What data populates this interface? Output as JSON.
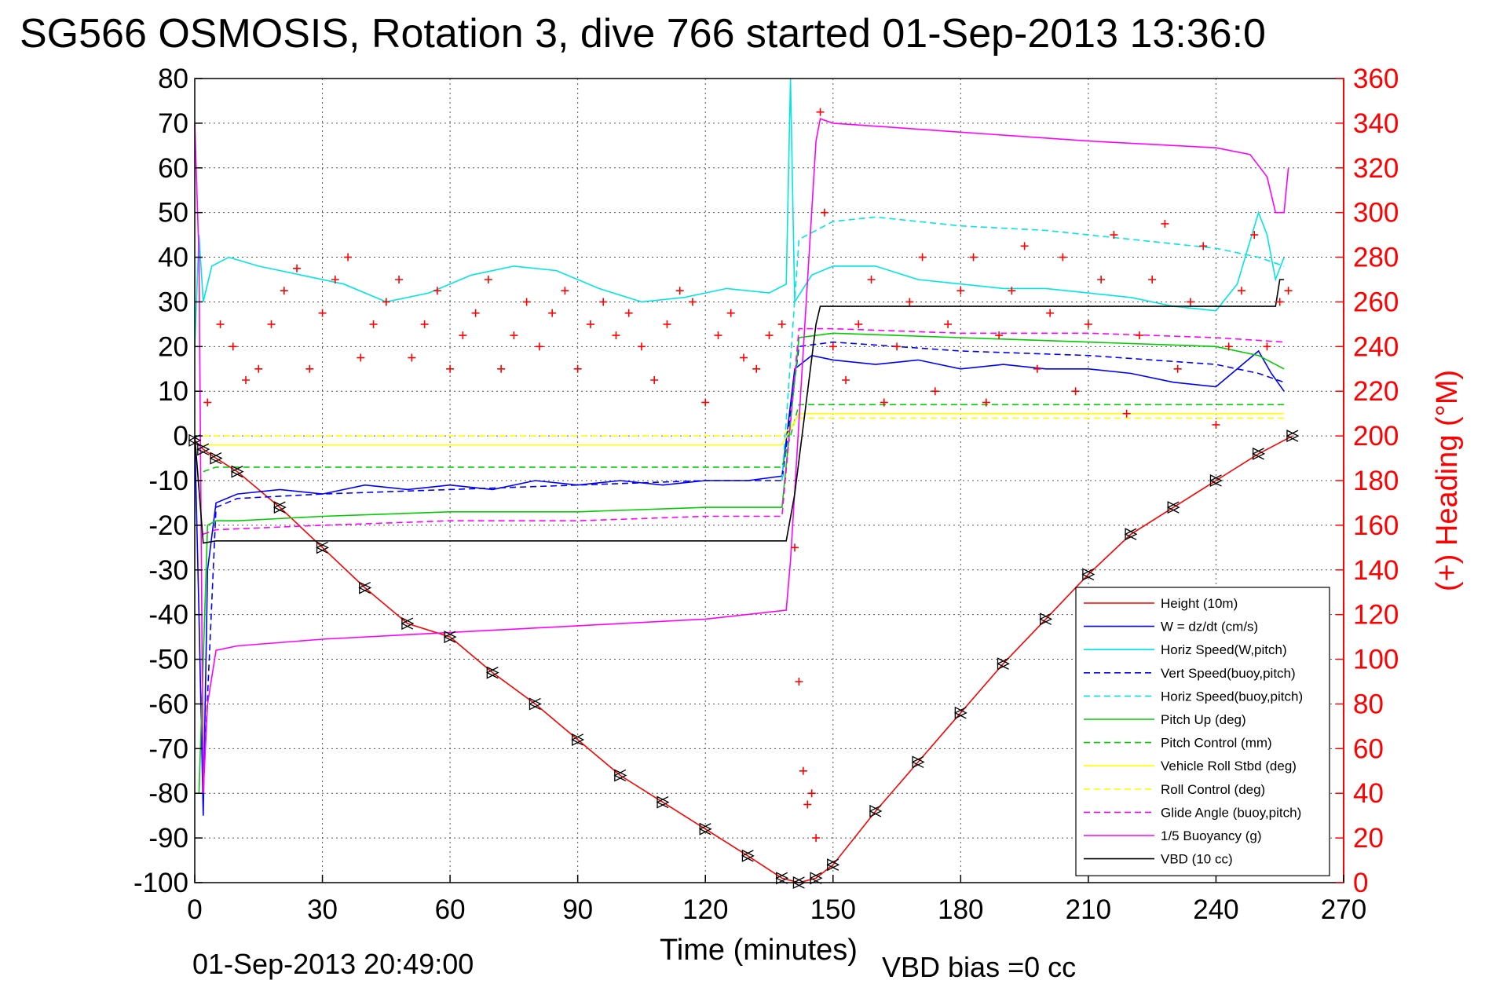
{
  "chart_data": {
    "type": "line",
    "title": "SG566 OSMOSIS, Rotation 3, dive 766 started 01-Sep-2013 13:36:0",
    "xlabel": "Time (minutes)",
    "ylabel_right": "(+) Heading (°M)",
    "xlim": [
      0,
      270
    ],
    "ylim": [
      -100,
      80
    ],
    "ylim_right": [
      0,
      360
    ],
    "x_ticks": [
      0,
      30,
      60,
      90,
      120,
      150,
      180,
      210,
      240,
      270
    ],
    "y_ticks": [
      80,
      70,
      60,
      50,
      40,
      30,
      20,
      10,
      0,
      -10,
      -20,
      -30,
      -40,
      -50,
      -60,
      -70,
      -80,
      -90,
      -100
    ],
    "y_ticks_right": [
      360,
      340,
      320,
      300,
      280,
      260,
      240,
      220,
      200,
      180,
      160,
      140,
      120,
      100,
      80,
      60,
      40,
      20,
      0
    ],
    "grid": true,
    "legend_position": "bottom-right",
    "footer_left": "01-Sep-2013 20:49:00",
    "footer_right": "VBD bias =0 cc",
    "series": [
      {
        "name": "Height (10m)",
        "color": "#ff0000",
        "dash": "solid",
        "x": [
          0,
          2,
          5,
          10,
          20,
          30,
          40,
          50,
          60,
          70,
          80,
          90,
          100,
          110,
          120,
          130,
          138,
          142,
          146,
          150,
          160,
          170,
          180,
          190,
          200,
          210,
          220,
          230,
          240,
          250,
          258
        ],
        "y": [
          -1,
          -3,
          -5,
          -8,
          -16,
          -25,
          -34,
          -42,
          -45,
          -53,
          -60,
          -68,
          -76,
          -82,
          -88,
          -94,
          -99,
          -100,
          -99,
          -96,
          -84,
          -73,
          -62,
          -51,
          -41,
          -31,
          -22,
          -16,
          -10,
          -4,
          0
        ]
      },
      {
        "name": "W = dz/dt (cm/s)",
        "color": "#0000ff",
        "dash": "solid",
        "x": [
          0,
          1,
          2,
          3,
          5,
          10,
          20,
          30,
          40,
          50,
          60,
          70,
          80,
          90,
          100,
          110,
          120,
          130,
          138,
          141,
          145,
          150,
          160,
          170,
          180,
          190,
          200,
          210,
          220,
          230,
          240,
          245,
          250,
          253,
          256
        ],
        "y": [
          0,
          -40,
          -85,
          -30,
          -15,
          -13,
          -12,
          -13,
          -11,
          -12,
          -11,
          -12,
          -10,
          -11,
          -10,
          -11,
          -10,
          -10,
          -9,
          15,
          18,
          17,
          16,
          17,
          15,
          16,
          15,
          15,
          14,
          12,
          11,
          15,
          19,
          14,
          10
        ]
      },
      {
        "name": "Horiz Speed(W,pitch)",
        "color": "#00e5e5",
        "dash": "solid",
        "x": [
          0,
          1,
          2,
          4,
          8,
          15,
          25,
          35,
          45,
          55,
          65,
          75,
          85,
          95,
          105,
          115,
          125,
          135,
          139,
          140,
          141,
          145,
          150,
          160,
          170,
          180,
          190,
          200,
          210,
          220,
          230,
          240,
          245,
          250,
          252,
          254,
          256
        ],
        "y": [
          20,
          45,
          30,
          38,
          40,
          38,
          36,
          34,
          30,
          32,
          36,
          38,
          37,
          33,
          30,
          31,
          33,
          32,
          34,
          80,
          30,
          36,
          38,
          38,
          35,
          34,
          33,
          33,
          32,
          31,
          29,
          28,
          34,
          50,
          45,
          35,
          40
        ]
      },
      {
        "name": "Vert Speed(buoy,pitch)",
        "color": "#0000ff",
        "dash": "dashed",
        "x": [
          2,
          5,
          10,
          30,
          60,
          90,
          120,
          138,
          142,
          150,
          180,
          210,
          240,
          250,
          256
        ],
        "y": [
          -80,
          -16,
          -14,
          -13,
          -12,
          -11,
          -10,
          -10,
          20,
          21,
          19,
          18,
          16,
          14,
          12
        ]
      },
      {
        "name": "Horiz Speed(buoy,pitch)",
        "color": "#00e5e5",
        "dash": "dashed",
        "x": [
          138,
          142,
          150,
          160,
          180,
          200,
          220,
          240,
          250,
          256
        ],
        "y": [
          -10,
          44,
          48,
          49,
          47,
          46,
          44,
          42,
          40,
          38
        ]
      },
      {
        "name": "Pitch Up (deg)",
        "color": "#00cc00",
        "dash": "solid",
        "x": [
          1,
          3,
          5,
          10,
          30,
          60,
          90,
          120,
          138,
          142,
          150,
          180,
          210,
          240,
          250,
          256
        ],
        "y": [
          -80,
          -20,
          -19,
          -19,
          -18,
          -17,
          -17,
          -16,
          -16,
          22,
          23,
          22,
          21,
          20,
          18,
          15
        ]
      },
      {
        "name": "Pitch Control (mm)",
        "color": "#00cc00",
        "dash": "dashed",
        "x": [
          2,
          5,
          30,
          60,
          90,
          120,
          138,
          142,
          150,
          180,
          210,
          240,
          256
        ],
        "y": [
          -8,
          -7,
          -7,
          -7,
          -7,
          -7,
          -7,
          7,
          7,
          7,
          7,
          7,
          7
        ]
      },
      {
        "name": "Vehicle Roll Stbd (deg)",
        "color": "#ffff00",
        "dash": "solid",
        "x": [
          2,
          10,
          40,
          70,
          100,
          130,
          138,
          142,
          150,
          180,
          210,
          240,
          256
        ],
        "y": [
          -2,
          -2,
          -2,
          -2,
          -2,
          -2,
          -2,
          5,
          5,
          5,
          5,
          5,
          5
        ]
      },
      {
        "name": "Roll Control (deg)",
        "color": "#ffff00",
        "dash": "dashed",
        "x": [
          2,
          30,
          60,
          90,
          120,
          138,
          142,
          180,
          210,
          240,
          256
        ],
        "y": [
          0,
          0,
          0,
          0,
          0,
          0,
          4,
          4,
          4,
          4,
          4
        ]
      },
      {
        "name": "Glide Angle (buoy,pitch)",
        "color": "#ff00ff",
        "dash": "dashed",
        "x": [
          2,
          5,
          30,
          60,
          90,
          120,
          138,
          142,
          150,
          180,
          210,
          240,
          256
        ],
        "y": [
          -22,
          -21,
          -20,
          -19,
          -19,
          -18,
          -18,
          24,
          24,
          23,
          23,
          22,
          21
        ]
      },
      {
        "name": "1/5 Buoyancy (g)",
        "color": "#ff00ff",
        "dash": "solid",
        "x": [
          0,
          1,
          2,
          3,
          5,
          10,
          30,
          60,
          90,
          120,
          139,
          140,
          146,
          147,
          150,
          180,
          210,
          240,
          248,
          252,
          254,
          256,
          257
        ],
        "y": [
          70,
          40,
          -80,
          -60,
          -48,
          -47,
          -45.5,
          -44,
          -42.5,
          -41,
          -39,
          -28,
          66,
          71,
          70,
          68,
          66,
          64.5,
          63,
          58,
          50,
          50,
          60
        ]
      },
      {
        "name": "VBD (10 cc)",
        "color": "#000000",
        "dash": "solid",
        "x": [
          0,
          2,
          5,
          40,
          80,
          120,
          139,
          141,
          146,
          147,
          150,
          180,
          210,
          240,
          254,
          255,
          256
        ],
        "y": [
          0,
          -24,
          -23.5,
          -23.5,
          -23.5,
          -23.5,
          -23.5,
          -13,
          25,
          29,
          29,
          29,
          29,
          29,
          29,
          35,
          35
        ]
      }
    ],
    "heading_markers": {
      "name": "(+) Heading (°M)",
      "color": "#ff0000",
      "marker": "+",
      "x": [
        3,
        6,
        9,
        12,
        15,
        18,
        21,
        24,
        27,
        30,
        33,
        36,
        39,
        42,
        45,
        48,
        51,
        54,
        57,
        60,
        63,
        66,
        69,
        72,
        75,
        78,
        81,
        84,
        87,
        90,
        93,
        96,
        99,
        102,
        105,
        108,
        111,
        114,
        117,
        120,
        123,
        126,
        129,
        132,
        135,
        138,
        141,
        142,
        143,
        144,
        145,
        146,
        147,
        148,
        150,
        153,
        156,
        159,
        162,
        165,
        168,
        171,
        174,
        177,
        180,
        183,
        186,
        189,
        192,
        195,
        198,
        201,
        204,
        207,
        210,
        213,
        216,
        219,
        222,
        225,
        228,
        231,
        234,
        237,
        240,
        243,
        246,
        249,
        252,
        255,
        257
      ],
      "y": [
        215,
        250,
        240,
        225,
        230,
        250,
        265,
        275,
        230,
        255,
        270,
        280,
        235,
        250,
        260,
        270,
        235,
        250,
        265,
        230,
        245,
        255,
        270,
        230,
        245,
        260,
        240,
        255,
        265,
        230,
        250,
        260,
        245,
        255,
        240,
        225,
        250,
        265,
        260,
        215,
        245,
        255,
        235,
        230,
        245,
        250,
        150,
        90,
        50,
        35,
        40,
        20,
        345,
        300,
        240,
        225,
        250,
        270,
        215,
        240,
        260,
        280,
        220,
        250,
        265,
        280,
        215,
        245,
        265,
        285,
        230,
        255,
        280,
        220,
        250,
        270,
        290,
        210,
        245,
        270,
        295,
        230,
        260,
        285,
        205,
        240,
        265,
        290,
        240,
        260,
        265
      ]
    }
  }
}
